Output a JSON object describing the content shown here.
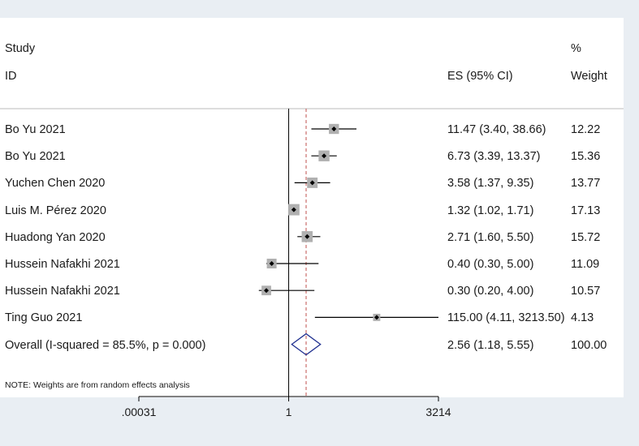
{
  "header": {
    "study_label": "Study",
    "id_label": "ID",
    "es_label": "ES (95% CI)",
    "weight_pct_label": "%",
    "weight_label": "Weight"
  },
  "chart_data": {
    "type": "forest",
    "scale": "log",
    "null_value": 1,
    "pooled_line": 2.56,
    "xticks": [
      {
        "value": 0.00031,
        "label": ".00031"
      },
      {
        "value": 1,
        "label": "1"
      },
      {
        "value": 3214,
        "label": "3214"
      }
    ],
    "studies": [
      {
        "id": "Bo Yu 2021",
        "es": 11.47,
        "lo": 3.4,
        "hi": 38.66,
        "ci_text": "11.47 (3.40, 38.66)",
        "weight": 12.22,
        "weight_text": "12.22"
      },
      {
        "id": "Bo Yu 2021",
        "es": 6.73,
        "lo": 3.39,
        "hi": 13.37,
        "ci_text": "6.73 (3.39, 13.37)",
        "weight": 15.36,
        "weight_text": "15.36"
      },
      {
        "id": "Yuchen Chen 2020",
        "es": 3.58,
        "lo": 1.37,
        "hi": 9.35,
        "ci_text": "3.58 (1.37, 9.35)",
        "weight": 13.77,
        "weight_text": "13.77"
      },
      {
        "id": "Luis M. Pérez 2020",
        "es": 1.32,
        "lo": 1.02,
        "hi": 1.71,
        "ci_text": "1.32 (1.02, 1.71)",
        "weight": 17.13,
        "weight_text": "17.13"
      },
      {
        "id": "Huadong Yan 2020",
        "es": 2.71,
        "lo": 1.6,
        "hi": 5.5,
        "ci_text": "2.71 (1.60, 5.50)",
        "weight": 15.72,
        "weight_text": "15.72"
      },
      {
        "id": "Hussein Nafakhi 2021",
        "es": 0.4,
        "lo": 0.3,
        "hi": 5.0,
        "ci_text": "0.40 (0.30, 5.00)",
        "weight": 11.09,
        "weight_text": "11.09"
      },
      {
        "id": "Hussein Nafakhi 2021",
        "es": 0.3,
        "lo": 0.2,
        "hi": 4.0,
        "ci_text": "0.30 (0.20, 4.00)",
        "weight": 10.57,
        "weight_text": "10.57"
      },
      {
        "id": "Ting Guo 2021",
        "es": 115.0,
        "lo": 4.11,
        "hi": 3213.5,
        "ci_text": "115.00 (4.11, 3213.50)",
        "weight": 4.13,
        "weight_text": "4.13"
      }
    ],
    "overall": {
      "label": "Overall  (I-squared = 85.5%, p = 0.000)",
      "es": 2.56,
      "lo": 1.18,
      "hi": 5.55,
      "ci_text": "2.56 (1.18, 5.55)",
      "weight_text": "100.00"
    },
    "note": "NOTE: Weights are from random effects analysis",
    "colors": {
      "diamond": "#1f2f8f",
      "pooled_line": "#c0504d",
      "box": "#b0b0b0",
      "marker": "#000000"
    }
  }
}
